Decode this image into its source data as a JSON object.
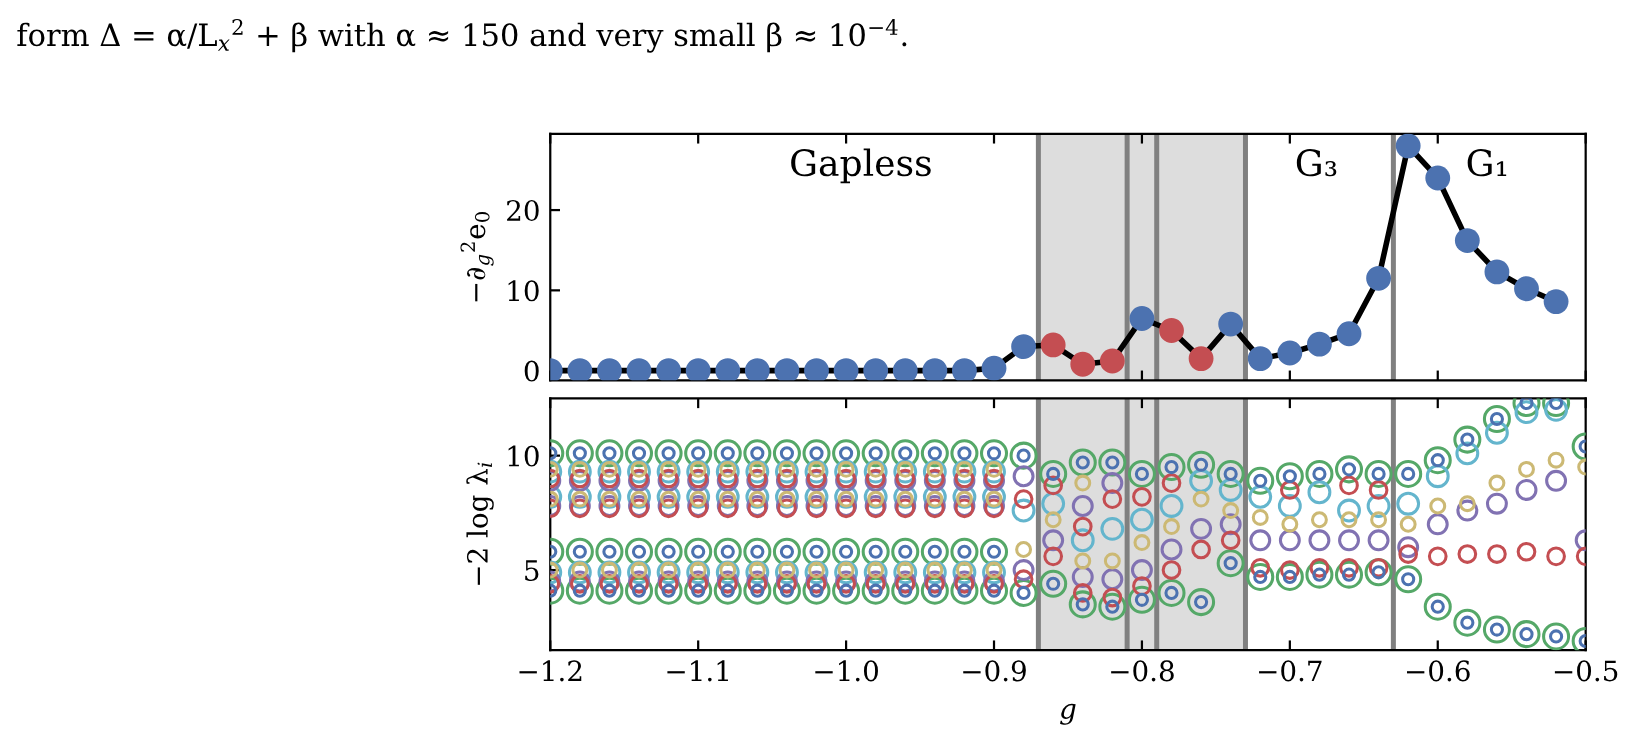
{
  "chart_data": [
    {
      "type": "line",
      "ylabel": "−∂$_{g}$$^{2}$e$_{0}$",
      "marker": "circle",
      "line_style": "solid",
      "grid": false,
      "legend": false,
      "tick_labels": "y",
      "x": [
        -1.2,
        -1.18,
        -1.16,
        -1.14,
        -1.12,
        -1.1,
        -1.08,
        -1.06,
        -1.04,
        -1.02,
        -1.0,
        -0.98,
        -0.96,
        -0.94,
        -0.92,
        -0.9,
        -0.88,
        -0.86,
        -0.84,
        -0.82,
        -0.8,
        -0.78,
        -0.76,
        -0.74,
        -0.72,
        -0.7,
        -0.68,
        -0.66,
        -0.64,
        -0.62,
        -0.6,
        -0.58,
        -0.56,
        -0.54,
        -0.52
      ],
      "series": [
        {
          "color": "#000000",
          "colors": [
            "#4c72b0",
            "#4c72b0",
            "#4c72b0",
            "#4c72b0",
            "#4c72b0",
            "#4c72b0",
            "#4c72b0",
            "#4c72b0",
            "#4c72b0",
            "#4c72b0",
            "#4c72b0",
            "#4c72b0",
            "#4c72b0",
            "#4c72b0",
            "#4c72b0",
            "#4c72b0",
            "#4c72b0",
            "#c44e52",
            "#c44e52",
            "#c44e52",
            "#4c72b0",
            "#c44e52",
            "#c44e52",
            "#4c72b0",
            "#4c72b0",
            "#4c72b0",
            "#4c72b0",
            "#4c72b0",
            "#4c72b0",
            "#4c72b0",
            "#4c72b0",
            "#4c72b0",
            "#4c72b0",
            "#4c72b0",
            "#4c72b0"
          ],
          "values": [
            0,
            0,
            0,
            0,
            0,
            0,
            0,
            0,
            0,
            0,
            0,
            0,
            0,
            0,
            0,
            0.3,
            3.0,
            3.2,
            0.8,
            1.2,
            6.5,
            5.0,
            1.5,
            5.8,
            1.5,
            2.2,
            3.3,
            4.6,
            11.5,
            28,
            24,
            16.2,
            12.3,
            10.2,
            8.6
          ]
        }
      ],
      "xlim": [
        -1.2,
        -0.5
      ],
      "xticks": [
        -1.2,
        -1.1,
        -1.0,
        -0.9,
        -0.8,
        -0.7,
        -0.6,
        -0.5
      ],
      "ylim": [
        -1.2,
        29.5
      ],
      "yticks": [
        0,
        10,
        20
      ],
      "bands": [
        {
          "axis": "x",
          "from": -0.87,
          "to": -0.73,
          "color": "#dddddd"
        }
      ],
      "ref_lines": [
        {
          "axis": "x",
          "value": -0.87,
          "color": "#808080"
        },
        {
          "axis": "x",
          "value": -0.81,
          "color": "#808080"
        },
        {
          "axis": "x",
          "value": -0.79,
          "color": "#808080"
        },
        {
          "axis": "x",
          "value": -0.73,
          "color": "#808080"
        },
        {
          "axis": "x",
          "value": -0.63,
          "color": "#808080"
        }
      ],
      "annotations": [
        "form Δ = α/L$_{x}$$^{2}$ + β with α ≈ 150 and very small β ≈ 10$^{−4}$.",
        "Gapless",
        "G₃",
        "G₁"
      ]
    },
    {
      "type": "scatter",
      "xlabel": "g",
      "ylabel": "−2 log λ$_{i}$",
      "marker": "circle",
      "grid": false,
      "legend": false,
      "xlim": [
        -1.2,
        -0.5
      ],
      "xticks": [
        {
          "value": -1.2,
          "label": "−1.2"
        },
        {
          "value": -1.1,
          "label": "−1.1"
        },
        {
          "value": -1.0,
          "label": "−1.0"
        },
        {
          "value": -0.9,
          "label": "−0.9"
        },
        {
          "value": -0.8,
          "label": "−0.8"
        },
        {
          "value": -0.7,
          "label": "−0.7"
        },
        {
          "value": -0.6,
          "label": "−0.6"
        },
        {
          "value": -0.5,
          "label": "−0.5"
        }
      ],
      "ylim": [
        1.5,
        12.5
      ],
      "yticks": [
        5,
        10
      ],
      "bands": [
        {
          "axis": "x",
          "from": -0.87,
          "to": -0.73,
          "color": "#dddddd"
        }
      ],
      "ref_lines": [
        {
          "axis": "x",
          "value": -0.87,
          "color": "#808080"
        },
        {
          "axis": "x",
          "value": -0.81,
          "color": "#808080"
        },
        {
          "axis": "x",
          "value": -0.79,
          "color": "#808080"
        },
        {
          "axis": "x",
          "value": -0.73,
          "color": "#808080"
        },
        {
          "axis": "x",
          "value": -0.63,
          "color": "#808080"
        }
      ],
      "series": [
        {
          "color": "#55a868",
          "x": [
            -1.2,
            -1.18,
            -1.16,
            -1.14,
            -1.12,
            -1.1,
            -1.08,
            -1.06,
            -1.04,
            -1.02,
            -1.0,
            -0.98,
            -0.96,
            -0.94,
            -0.92,
            -0.9,
            -1.2,
            -1.18,
            -1.16,
            -1.14,
            -1.12,
            -1.1,
            -1.08,
            -1.06,
            -1.04,
            -1.02,
            -1.0,
            -0.98,
            -0.96,
            -0.94,
            -0.92,
            -0.9,
            -1.2,
            -1.18,
            -1.16,
            -1.14,
            -1.12,
            -1.1,
            -1.08,
            -1.06,
            -1.04,
            -1.02,
            -1.0,
            -0.98,
            -0.96,
            -0.94,
            -0.92,
            -0.9,
            -0.88,
            -0.88,
            -0.86,
            -0.86,
            -0.84,
            -0.84,
            -0.82,
            -0.82,
            -0.8,
            -0.8,
            -0.78,
            -0.78,
            -0.76,
            -0.76,
            -0.74,
            -0.74,
            -0.72,
            -0.72,
            -0.7,
            -0.7,
            -0.68,
            -0.68,
            -0.66,
            -0.66,
            -0.64,
            -0.64,
            -0.62,
            -0.62,
            -0.6,
            -0.6,
            -0.58,
            -0.58,
            -0.56,
            -0.56,
            -0.54,
            -0.54,
            -0.52,
            -0.52,
            -0.5,
            -0.5
          ],
          "values": [
            4.1,
            4.1,
            4.1,
            4.1,
            4.1,
            4.1,
            4.1,
            4.1,
            4.1,
            4.1,
            4.1,
            4.1,
            4.1,
            4.1,
            4.1,
            4.1,
            5.8,
            5.8,
            5.8,
            5.8,
            5.8,
            5.8,
            5.8,
            5.8,
            5.8,
            5.8,
            5.8,
            5.8,
            5.8,
            5.8,
            5.8,
            5.8,
            10.1,
            10.1,
            10.1,
            10.1,
            10.1,
            10.1,
            10.1,
            10.1,
            10.1,
            10.1,
            10.1,
            10.1,
            10.1,
            10.1,
            10.1,
            10.1,
            4.0,
            10.0,
            4.4,
            9.2,
            3.5,
            9.7,
            3.4,
            9.7,
            3.7,
            9.2,
            4.0,
            9.5,
            3.6,
            9.6,
            5.3,
            9.2,
            4.7,
            8.9,
            4.7,
            9.1,
            4.8,
            9.2,
            4.8,
            9.4,
            4.9,
            9.2,
            4.6,
            9.2,
            3.4,
            9.8,
            2.7,
            10.7,
            2.4,
            11.6,
            2.2,
            12.3,
            2.1,
            12.3,
            1.9,
            10.4
          ]
        },
        {
          "color": "#64b5cd",
          "x": [
            -1.2,
            -1.18,
            -1.16,
            -1.14,
            -1.12,
            -1.1,
            -1.08,
            -1.06,
            -1.04,
            -1.02,
            -1.0,
            -0.98,
            -0.96,
            -0.94,
            -0.92,
            -0.9,
            -1.2,
            -1.18,
            -1.16,
            -1.14,
            -1.12,
            -1.1,
            -1.08,
            -1.06,
            -1.04,
            -1.02,
            -1.0,
            -0.98,
            -0.96,
            -0.94,
            -0.92,
            -0.9,
            -1.2,
            -1.18,
            -1.16,
            -1.14,
            -1.12,
            -1.1,
            -1.08,
            -1.06,
            -1.04,
            -1.02,
            -1.0,
            -0.98,
            -0.96,
            -0.94,
            -0.92,
            -0.9,
            -0.88,
            -0.86,
            -0.84,
            -0.82,
            -0.8,
            -0.78,
            -0.76,
            -0.74,
            -0.72,
            -0.7,
            -0.68,
            -0.66,
            -0.64,
            -0.62,
            -0.6,
            -0.58,
            -0.56,
            -0.54,
            -0.52
          ],
          "values": [
            4.9,
            4.9,
            4.9,
            4.9,
            4.9,
            4.9,
            4.9,
            4.9,
            4.9,
            4.9,
            4.9,
            4.9,
            4.9,
            4.9,
            4.9,
            4.9,
            8.2,
            8.2,
            8.2,
            8.2,
            8.2,
            8.2,
            8.2,
            8.2,
            8.2,
            8.2,
            8.2,
            8.2,
            8.2,
            8.2,
            8.2,
            8.2,
            9.3,
            9.3,
            9.3,
            9.3,
            9.3,
            9.3,
            9.3,
            9.3,
            9.3,
            9.3,
            9.3,
            9.3,
            9.3,
            9.3,
            9.3,
            9.3,
            7.6,
            7.9,
            6.3,
            6.8,
            7.2,
            7.8,
            8.9,
            8.5,
            8.2,
            7.8,
            8.4,
            7.6,
            7.8,
            7.9,
            9.1,
            10.1,
            11.0,
            11.9,
            12.0
          ]
        },
        {
          "color": "#8172b2",
          "x": [
            -1.2,
            -1.18,
            -1.16,
            -1.14,
            -1.12,
            -1.1,
            -1.08,
            -1.06,
            -1.04,
            -1.02,
            -1.0,
            -0.98,
            -0.96,
            -0.94,
            -0.92,
            -0.9,
            -1.2,
            -1.18,
            -1.16,
            -1.14,
            -1.12,
            -1.1,
            -1.08,
            -1.06,
            -1.04,
            -1.02,
            -1.0,
            -0.98,
            -0.96,
            -0.94,
            -0.92,
            -0.9,
            -1.2,
            -1.18,
            -1.16,
            -1.14,
            -1.12,
            -1.1,
            -1.08,
            -1.06,
            -1.04,
            -1.02,
            -1.0,
            -0.98,
            -0.96,
            -0.94,
            -0.92,
            -0.9,
            -0.88,
            -0.88,
            -0.86,
            -0.84,
            -0.84,
            -0.82,
            -0.82,
            -0.8,
            -0.78,
            -0.76,
            -0.74,
            -0.72,
            -0.7,
            -0.68,
            -0.66,
            -0.64,
            -0.62,
            -0.6,
            -0.58,
            -0.56,
            -0.54,
            -0.52,
            -0.5
          ],
          "values": [
            4.5,
            4.5,
            4.5,
            4.5,
            4.5,
            4.5,
            4.5,
            4.5,
            4.5,
            4.5,
            4.5,
            4.5,
            4.5,
            4.5,
            4.5,
            4.5,
            7.8,
            7.8,
            7.8,
            7.8,
            7.8,
            7.8,
            7.8,
            7.8,
            7.8,
            7.8,
            7.8,
            7.8,
            7.8,
            7.8,
            7.8,
            7.8,
            8.9,
            8.9,
            8.9,
            8.9,
            8.9,
            8.9,
            8.9,
            8.9,
            8.9,
            8.9,
            8.9,
            8.9,
            8.9,
            8.9,
            8.9,
            8.9,
            5.0,
            9.1,
            6.3,
            4.7,
            7.8,
            4.6,
            8.8,
            5.0,
            5.9,
            6.8,
            7.0,
            6.3,
            6.3,
            6.3,
            6.3,
            6.3,
            6.0,
            7.0,
            7.6,
            7.9,
            8.5,
            8.9,
            6.3
          ]
        },
        {
          "color": "#c44e52",
          "x": [
            -1.2,
            -1.18,
            -1.16,
            -1.14,
            -1.12,
            -1.1,
            -1.08,
            -1.06,
            -1.04,
            -1.02,
            -1.0,
            -0.98,
            -0.96,
            -0.94,
            -0.92,
            -0.9,
            -1.2,
            -1.18,
            -1.16,
            -1.14,
            -1.12,
            -1.1,
            -1.08,
            -1.06,
            -1.04,
            -1.02,
            -1.0,
            -0.98,
            -0.96,
            -0.94,
            -0.92,
            -0.9,
            -1.2,
            -1.18,
            -1.16,
            -1.14,
            -1.12,
            -1.1,
            -1.08,
            -1.06,
            -1.04,
            -1.02,
            -1.0,
            -0.98,
            -0.96,
            -0.94,
            -0.92,
            -0.9,
            -0.88,
            -0.88,
            -0.86,
            -0.86,
            -0.84,
            -0.84,
            -0.82,
            -0.82,
            -0.8,
            -0.8,
            -0.78,
            -0.78,
            -0.76,
            -0.74,
            -0.72,
            -0.7,
            -0.7,
            -0.68,
            -0.66,
            -0.66,
            -0.64,
            -0.64,
            -0.62,
            -0.6,
            -0.58,
            -0.56,
            -0.54,
            -0.52,
            -0.5
          ],
          "values": [
            4.4,
            4.4,
            4.4,
            4.4,
            4.4,
            4.4,
            4.4,
            4.4,
            4.4,
            4.4,
            4.4,
            4.4,
            4.4,
            4.4,
            4.4,
            4.4,
            7.7,
            7.7,
            7.7,
            7.7,
            7.7,
            7.7,
            7.7,
            7.7,
            7.7,
            7.7,
            7.7,
            7.7,
            7.7,
            7.7,
            7.7,
            7.7,
            9.0,
            9.0,
            9.0,
            9.0,
            9.0,
            9.0,
            9.0,
            9.0,
            9.0,
            9.0,
            9.0,
            9.0,
            9.0,
            9.0,
            9.0,
            9.0,
            4.6,
            8.1,
            5.6,
            8.7,
            4.0,
            6.9,
            3.8,
            8.1,
            4.3,
            8.2,
            5.0,
            8.8,
            5.9,
            6.3,
            5.1,
            5.0,
            8.5,
            5.1,
            5.1,
            8.7,
            5.1,
            8.5,
            5.7,
            5.6,
            5.7,
            5.7,
            5.8,
            5.6,
            5.6
          ]
        },
        {
          "color": "#ccb974",
          "x": [
            -1.2,
            -1.18,
            -1.16,
            -1.14,
            -1.12,
            -1.1,
            -1.08,
            -1.06,
            -1.04,
            -1.02,
            -1.0,
            -0.98,
            -0.96,
            -0.94,
            -0.92,
            -0.9,
            -1.2,
            -1.18,
            -1.16,
            -1.14,
            -1.12,
            -1.1,
            -1.08,
            -1.06,
            -1.04,
            -1.02,
            -1.0,
            -0.98,
            -0.96,
            -0.94,
            -0.92,
            -0.9,
            -1.2,
            -1.18,
            -1.16,
            -1.14,
            -1.12,
            -1.1,
            -1.08,
            -1.06,
            -1.04,
            -1.02,
            -1.0,
            -0.98,
            -0.96,
            -0.94,
            -0.92,
            -0.9,
            -0.88,
            -0.86,
            -0.84,
            -0.84,
            -0.82,
            -0.8,
            -0.78,
            -0.76,
            -0.74,
            -0.72,
            -0.7,
            -0.68,
            -0.66,
            -0.64,
            -0.62,
            -0.6,
            -0.58,
            -0.56,
            -0.54,
            -0.52,
            -0.5
          ],
          "values": [
            5.0,
            5.0,
            5.0,
            5.0,
            5.0,
            5.0,
            5.0,
            5.0,
            5.0,
            5.0,
            5.0,
            5.0,
            5.0,
            5.0,
            5.0,
            5.0,
            8.1,
            8.1,
            8.1,
            8.1,
            8.1,
            8.1,
            8.1,
            8.1,
            8.1,
            8.1,
            8.1,
            8.1,
            8.1,
            8.1,
            8.1,
            8.1,
            9.4,
            9.4,
            9.4,
            9.4,
            9.4,
            9.4,
            9.4,
            9.4,
            9.4,
            9.4,
            9.4,
            9.4,
            9.4,
            9.4,
            9.4,
            9.4,
            5.9,
            7.2,
            5.4,
            8.8,
            5.4,
            6.2,
            6.9,
            8.1,
            7.6,
            7.3,
            7.0,
            7.2,
            7.2,
            7.2,
            7.0,
            7.8,
            7.9,
            8.8,
            9.4,
            9.8,
            9.5
          ]
        },
        {
          "color": "#4c72b0",
          "x": [
            -1.2,
            -1.18,
            -1.16,
            -1.14,
            -1.12,
            -1.1,
            -1.08,
            -1.06,
            -1.04,
            -1.02,
            -1.0,
            -0.98,
            -0.96,
            -0.94,
            -0.92,
            -0.9,
            -1.2,
            -1.18,
            -1.16,
            -1.14,
            -1.12,
            -1.1,
            -1.08,
            -1.06,
            -1.04,
            -1.02,
            -1.0,
            -0.98,
            -0.96,
            -0.94,
            -0.92,
            -0.9,
            -1.2,
            -1.18,
            -1.16,
            -1.14,
            -1.12,
            -1.1,
            -1.08,
            -1.06,
            -1.04,
            -1.02,
            -1.0,
            -0.98,
            -0.96,
            -0.94,
            -0.92,
            -0.9,
            -0.88,
            -0.88,
            -0.86,
            -0.86,
            -0.84,
            -0.84,
            -0.82,
            -0.82,
            -0.8,
            -0.8,
            -0.78,
            -0.78,
            -0.76,
            -0.76,
            -0.74,
            -0.74,
            -0.72,
            -0.72,
            -0.7,
            -0.7,
            -0.68,
            -0.68,
            -0.66,
            -0.66,
            -0.64,
            -0.64,
            -0.62,
            -0.62,
            -0.6,
            -0.6,
            -0.58,
            -0.58,
            -0.56,
            -0.56,
            -0.54,
            -0.54,
            -0.52,
            -0.52,
            -0.5,
            -0.5
          ],
          "values": [
            4.1,
            4.1,
            4.1,
            4.1,
            4.1,
            4.1,
            4.1,
            4.1,
            4.1,
            4.1,
            4.1,
            4.1,
            4.1,
            4.1,
            4.1,
            4.1,
            5.8,
            5.8,
            5.8,
            5.8,
            5.8,
            5.8,
            5.8,
            5.8,
            5.8,
            5.8,
            5.8,
            5.8,
            5.8,
            5.8,
            5.8,
            5.8,
            10.1,
            10.1,
            10.1,
            10.1,
            10.1,
            10.1,
            10.1,
            10.1,
            10.1,
            10.1,
            10.1,
            10.1,
            10.1,
            10.1,
            10.1,
            10.1,
            4.0,
            10.0,
            4.4,
            9.2,
            3.5,
            9.7,
            3.4,
            9.7,
            3.7,
            9.2,
            4.0,
            9.5,
            3.6,
            9.6,
            5.3,
            9.2,
            4.7,
            8.9,
            4.7,
            9.1,
            4.8,
            9.2,
            4.8,
            9.4,
            4.9,
            9.2,
            4.6,
            9.2,
            3.4,
            9.8,
            2.7,
            10.7,
            2.4,
            11.6,
            2.2,
            12.3,
            2.1,
            12.3,
            1.9,
            10.4
          ]
        }
      ]
    }
  ]
}
